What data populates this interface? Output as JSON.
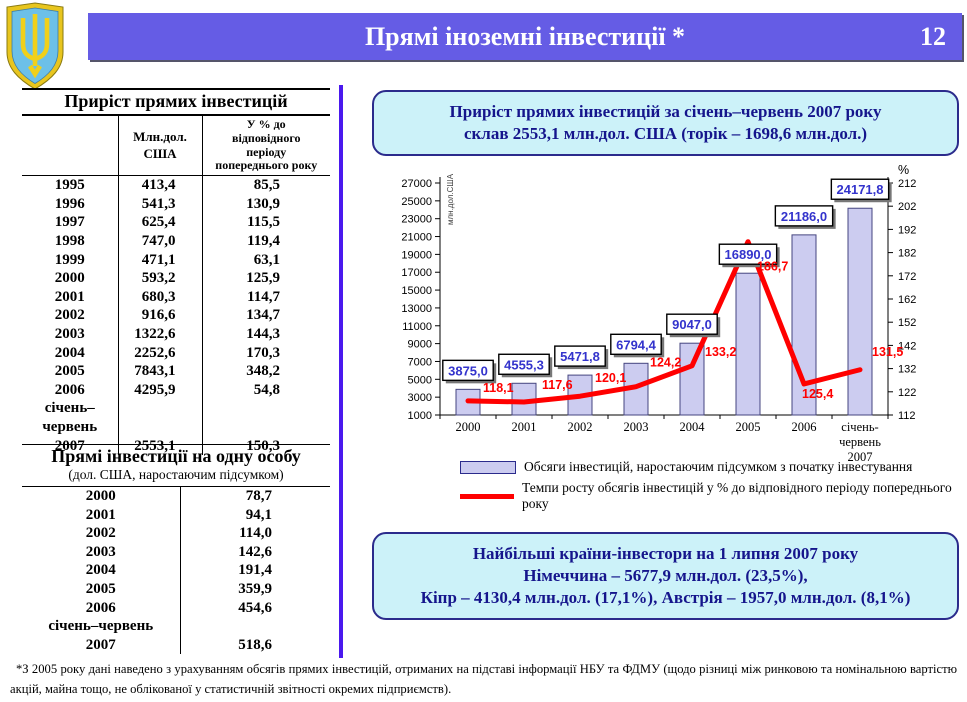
{
  "header": {
    "title": "Прямі іноземні інвестиції *",
    "page_number": "12"
  },
  "icons": {
    "emblem": "ukraine-coat-of-arms-trident"
  },
  "colors": {
    "header_bar": "#655CE5",
    "divider": "#4A18EE",
    "info_box_bg": "#CCF2F9",
    "info_box_border": "#2B2B8C",
    "info_box_text": "#15158C",
    "bar_fill": "#CCCCF0",
    "bar_stroke": "#45457F",
    "bar_label_text": "#3333CC",
    "line_color": "#FF0000"
  },
  "table1": {
    "title": "Приріст прямих інвестицій",
    "col_headers": [
      "",
      "Млн.дол.\nСША",
      "У % до\nвідповідного\nперіоду\nпопереднього року"
    ],
    "rows": [
      [
        "1995",
        "413,4",
        "85,5"
      ],
      [
        "1996",
        "541,3",
        "130,9"
      ],
      [
        "1997",
        "625,4",
        "115,5"
      ],
      [
        "1998",
        "747,0",
        "119,4"
      ],
      [
        "1999",
        "471,1",
        "63,1"
      ],
      [
        "2000",
        "593,2",
        "125,9"
      ],
      [
        "2001",
        "680,3",
        "114,7"
      ],
      [
        "2002",
        "916,6",
        "134,7"
      ],
      [
        "2003",
        "1322,6",
        "144,3"
      ],
      [
        "2004",
        "2252,6",
        "170,3"
      ],
      [
        "2005",
        "7843,1",
        "348,2"
      ],
      [
        "2006",
        "4295,9",
        "54,8"
      ],
      [
        "січень–\nчервень",
        "",
        ""
      ],
      [
        "2007",
        "2553,1",
        "150,3"
      ]
    ]
  },
  "table2": {
    "title": "Прямі інвестиції на одну особу",
    "subtitle": "(дол. США, наростаючим підсумком)",
    "rows": [
      [
        "2000",
        "78,7"
      ],
      [
        "2001",
        "94,1"
      ],
      [
        "2002",
        "114,0"
      ],
      [
        "2003",
        "142,6"
      ],
      [
        "2004",
        "191,4"
      ],
      [
        "2005",
        "359,9"
      ],
      [
        "2006",
        "454,6"
      ],
      [
        "січень–червень",
        ""
      ],
      [
        "2007",
        "518,6"
      ]
    ]
  },
  "info_box_top": {
    "text": "Приріст прямих інвестицій за січень–червень 2007 року\nсклав 2553,1 млн.дол. США (торік – 1698,6 млн.дол.)"
  },
  "info_box_bottom": {
    "text": "Найбільші країни-інвестори на 1 липня 2007 року\nНімеччина – 5677,9 млн.дол. (23,5%),\nКіпр – 4130,4 млн.дол. (17,1%), Австрія – 1957,0 млн.дол. (8,1%)"
  },
  "chart_data": {
    "type": "bar",
    "categories": [
      "2000",
      "2001",
      "2002",
      "2003",
      "2004",
      "2005",
      "2006",
      "січень-\nчервень\n2007"
    ],
    "series": [
      {
        "name": "Обсяги інвестицій, наростаючим підсумком з початку інвестування",
        "type": "bar",
        "axis": "left",
        "values": [
          3875.0,
          4555.3,
          5471.8,
          6794.4,
          9047.0,
          16890.0,
          21186.0,
          24171.8
        ],
        "labels": [
          "3875,0",
          "4555,3",
          "5471,8",
          "6794,4",
          "9047,0",
          "16890,0",
          "21186,0",
          "24171,8"
        ]
      },
      {
        "name": "Темпи росту обсягів інвестицій у % до відповідного періоду попереднього року",
        "type": "line",
        "axis": "right",
        "values": [
          118.1,
          117.6,
          120.1,
          124.2,
          133.2,
          186.7,
          125.4,
          131.5
        ],
        "labels": [
          "118,1",
          "117,6",
          "120,1",
          "124,2",
          "133,2",
          "186,7",
          "125,4",
          "131,5"
        ],
        "label_offsets": [
          [
            15,
            -9
          ],
          [
            18,
            -13
          ],
          [
            15,
            -14
          ],
          [
            14,
            -20
          ],
          [
            13,
            -10
          ],
          [
            9,
            29
          ],
          [
            -2,
            14
          ],
          [
            12,
            -14
          ]
        ]
      }
    ],
    "left_axis": {
      "title": "млн.дол.США",
      "min": 1000,
      "max": 27000,
      "step": 2000
    },
    "right_axis": {
      "title": "%",
      "min": 112,
      "max": 212,
      "step": 10
    },
    "grid": false,
    "legend_position": "bottom"
  },
  "footnote": "*З 2005 року дані наведено з урахуванням обсягів прямих інвестицій, отриманих на підставі інформації НБУ та ФДМУ (щодо різниці між ринковою та номінальною вартістю акцій, майна тощо, не облікованої у статистичній звітності окремих підприємств)."
}
